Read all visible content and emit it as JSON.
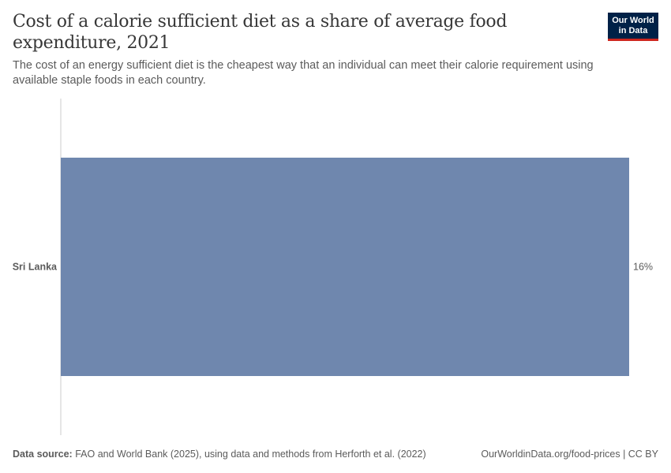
{
  "header": {
    "title": "Cost of a calorie sufficient diet as a share of average food expenditure, 2021",
    "subtitle": "The cost of an energy sufficient diet is the cheapest way that an individual can meet their calorie requirement using available staple foods in each country."
  },
  "logo": {
    "line1": "Our World",
    "line2": "in Data"
  },
  "chart_data": {
    "type": "bar",
    "orientation": "horizontal",
    "categories": [
      "Sri Lanka"
    ],
    "values": [
      16
    ],
    "value_labels": [
      "16%"
    ],
    "xlim": [
      0,
      16
    ],
    "color": "#6f87ae",
    "grid": false
  },
  "footer": {
    "source_label": "Data source:",
    "source_text": "FAO and World Bank (2025), using data and methods from Herforth et al. (2022)",
    "right_text": "OurWorldinData.org/food-prices | CC BY"
  }
}
